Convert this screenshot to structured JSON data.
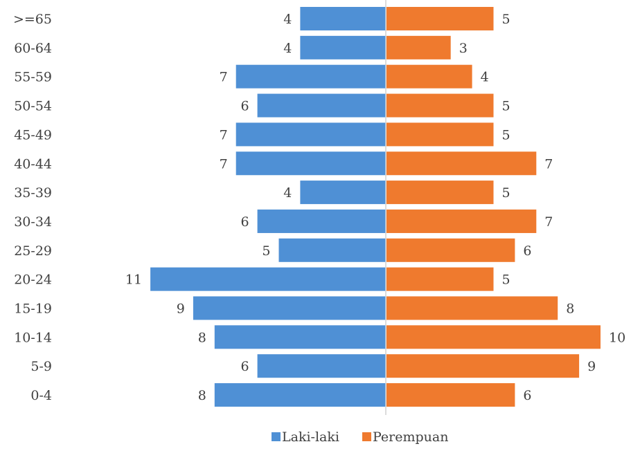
{
  "chart_data": {
    "type": "bar",
    "orientation": "horizontal-diverging",
    "categories": [
      ">=65",
      "60-64",
      "55-59",
      "50-54",
      "45-49",
      "40-44",
      "35-39",
      "30-34",
      "25-29",
      "20-24",
      "15-19",
      "10-14",
      "5-9",
      "0-4"
    ],
    "series": [
      {
        "name": "Laki-laki",
        "color": "#4F90D5",
        "side": "left",
        "values": [
          4,
          4,
          7,
          6,
          7,
          7,
          4,
          6,
          5,
          11,
          9,
          8,
          6,
          8
        ]
      },
      {
        "name": "Perempuan",
        "color": "#EF7A2E",
        "side": "right",
        "values": [
          5,
          3,
          4,
          5,
          5,
          7,
          5,
          7,
          6,
          5,
          8,
          10,
          9,
          6
        ]
      }
    ],
    "legend_position": "bottom",
    "grid": false,
    "data_labels": true
  }
}
